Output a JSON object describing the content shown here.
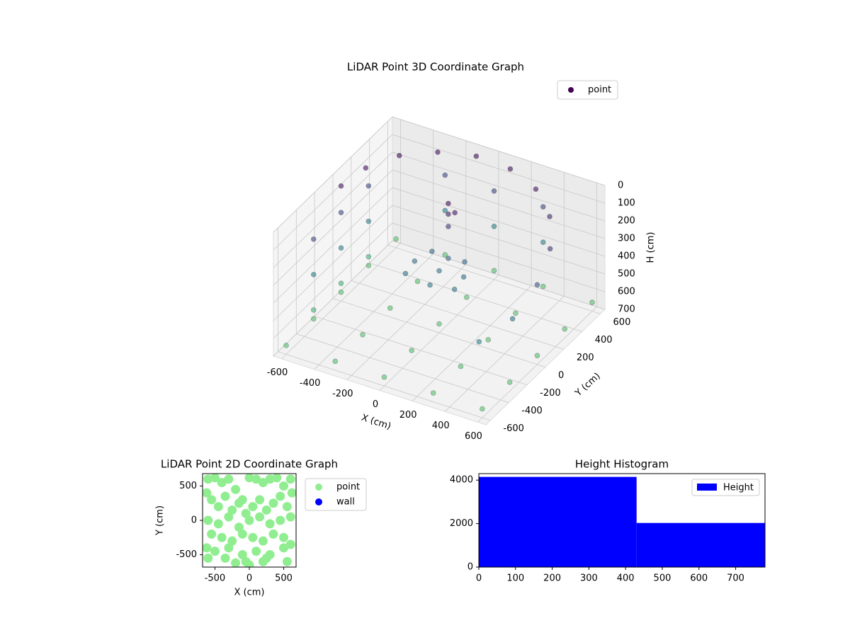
{
  "chart_data": [
    {
      "type": "scatter3d",
      "title": "LiDAR Point 3D Coordinate Graph",
      "xlabel": "X (cm)",
      "ylabel": "Y (cm)",
      "zlabel": "H (cm)",
      "xlim": [
        -650,
        650
      ],
      "ylim": [
        -650,
        650
      ],
      "zlim": [
        0,
        700
      ],
      "zaxis_inverted": true,
      "xticks": [
        -600,
        -400,
        -200,
        0,
        200,
        400,
        600
      ],
      "yticks": [
        -600,
        -400,
        -200,
        0,
        200,
        400,
        600
      ],
      "zticks": [
        0,
        100,
        200,
        300,
        400,
        500,
        600,
        700
      ],
      "colormap": "viridis",
      "legend": "upper right",
      "series": [
        {
          "name": "point",
          "color": "#440154",
          "x": [
            -600,
            -564,
            -460,
            -300,
            -104,
            104,
            300,
            460,
            564,
            600,
            564,
            460,
            -150,
            0,
            150,
            -150,
            0,
            150,
            -100,
            0,
            100,
            0,
            0,
            0,
            40,
            -600,
            -300,
            0,
            300,
            600,
            -600,
            -300,
            0,
            300,
            600,
            -600,
            -300,
            0,
            300,
            600,
            -600,
            -300,
            0,
            300,
            600,
            -600,
            -300,
            0,
            300,
            600,
            -600,
            -600,
            -600,
            -600,
            -600,
            -600,
            -600,
            -600,
            -600,
            -300,
            0,
            300,
            -300,
            0,
            300
          ],
          "y": [
            0,
            205,
            386,
            520,
            591,
            591,
            520,
            386,
            205,
            0,
            -205,
            -386,
            -100,
            -100,
            -100,
            0,
            0,
            0,
            100,
            100,
            100,
            100,
            100,
            100,
            100,
            -600,
            -600,
            -600,
            -600,
            -600,
            -300,
            -300,
            -300,
            -300,
            -300,
            0,
            0,
            0,
            0,
            0,
            300,
            300,
            300,
            300,
            300,
            600,
            600,
            600,
            600,
            600,
            -300,
            0,
            300,
            -300,
            0,
            300,
            -300,
            0,
            300,
            600,
            600,
            600,
            600,
            600,
            600
          ],
          "h": [
            50,
            40,
            30,
            30,
            30,
            40,
            60,
            100,
            160,
            250,
            350,
            420,
            360,
            380,
            360,
            340,
            350,
            340,
            320,
            330,
            320,
            20,
            80,
            150,
            60,
            650,
            650,
            650,
            650,
            650,
            650,
            650,
            650,
            650,
            650,
            650,
            650,
            650,
            650,
            650,
            650,
            650,
            650,
            650,
            650,
            650,
            650,
            650,
            650,
            650,
            200,
            200,
            200,
            400,
            400,
            400,
            600,
            600,
            600,
            200,
            200,
            200,
            400,
            400,
            400
          ]
        }
      ]
    },
    {
      "type": "scatter",
      "title": "LiDAR Point 2D Coordinate Graph",
      "xlabel": "X (cm)",
      "ylabel": "Y (cm)",
      "xlim": [
        -680,
        680
      ],
      "ylim": [
        -680,
        680
      ],
      "xticks": [
        -500,
        0,
        500
      ],
      "yticks": [
        -500,
        0,
        500
      ],
      "legend": "outside right",
      "series": [
        {
          "name": "point",
          "color": "#90ee90",
          "x": [
            -600,
            -500,
            -400,
            -300,
            -200,
            -100,
            0,
            100,
            200,
            300,
            400,
            500,
            600,
            -620,
            -550,
            -450,
            -350,
            -250,
            -150,
            -50,
            50,
            150,
            250,
            350,
            450,
            550,
            620,
            -600,
            -450,
            -300,
            -150,
            0,
            150,
            300,
            450,
            600,
            -550,
            -400,
            -250,
            -100,
            50,
            200,
            350,
            500,
            -620,
            -500,
            -300,
            -100,
            100,
            300,
            500,
            600,
            -600,
            -350,
            -50,
            250,
            550,
            -200,
            0,
            200
          ],
          "y": [
            600,
            620,
            550,
            600,
            450,
            300,
            620,
            600,
            550,
            600,
            620,
            500,
            600,
            400,
            300,
            200,
            350,
            150,
            250,
            100,
            200,
            300,
            150,
            250,
            350,
            200,
            400,
            0,
            -50,
            50,
            -100,
            0,
            50,
            -50,
            0,
            50,
            -200,
            -250,
            -300,
            -200,
            -250,
            -300,
            -200,
            -250,
            -400,
            -450,
            -400,
            -500,
            -450,
            -500,
            -400,
            -350,
            -550,
            -550,
            -600,
            -550,
            -600,
            -620,
            -650,
            -600
          ]
        },
        {
          "name": "wall",
          "color": "#0000ff",
          "x": [],
          "y": []
        }
      ]
    },
    {
      "type": "histogram",
      "title": "Height Histogram",
      "bins": [
        0,
        430,
        780
      ],
      "xlim": [
        0,
        780
      ],
      "ylim": [
        0,
        4300
      ],
      "xticks": [
        0,
        100,
        200,
        300,
        400,
        500,
        600,
        700
      ],
      "yticks": [
        0,
        2000,
        4000
      ],
      "legend": "upper right",
      "series": [
        {
          "name": "Height",
          "color": "#0000ff",
          "values": [
            4150,
            2030
          ]
        }
      ]
    }
  ]
}
